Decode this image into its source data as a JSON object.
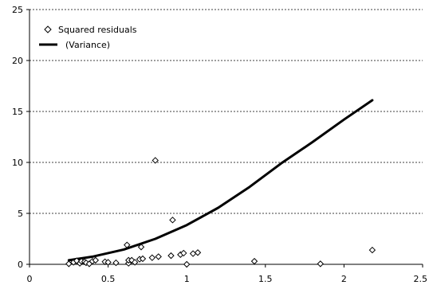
{
  "chart_data": {
    "type": "scatter",
    "title": "",
    "xlabel": "",
    "ylabel": "",
    "xlim": [
      0,
      2.5
    ],
    "ylim": [
      0,
      25
    ],
    "x_ticks": [
      0,
      0.5,
      1,
      1.5,
      2,
      2.5
    ],
    "x_tick_labels": [
      "0",
      "0.5",
      "1",
      "1.5",
      "2",
      "2.5"
    ],
    "y_ticks": [
      0,
      5,
      10,
      15,
      20,
      25
    ],
    "y_tick_labels": [
      "0",
      "5",
      "10",
      "15",
      "20",
      "25"
    ],
    "grid": "horizontal-dashed",
    "legend_position": "top-left",
    "series": [
      {
        "name": "Squared residuals",
        "kind": "points",
        "marker": "diamond",
        "points": [
          [
            0.25,
            0.05
          ],
          [
            0.28,
            0.2
          ],
          [
            0.3,
            0.35
          ],
          [
            0.32,
            0.1
          ],
          [
            0.33,
            0.3
          ],
          [
            0.35,
            0.25
          ],
          [
            0.36,
            0.15
          ],
          [
            0.38,
            0.05
          ],
          [
            0.4,
            0.3
          ],
          [
            0.42,
            0.4
          ],
          [
            0.48,
            0.25
          ],
          [
            0.5,
            0.2
          ],
          [
            0.55,
            0.15
          ],
          [
            0.62,
            1.9
          ],
          [
            0.63,
            0.1
          ],
          [
            0.63,
            0.4
          ],
          [
            0.65,
            0.4
          ],
          [
            0.67,
            0.2
          ],
          [
            0.7,
            0.5
          ],
          [
            0.71,
            1.7
          ],
          [
            0.72,
            0.55
          ],
          [
            0.78,
            0.65
          ],
          [
            0.8,
            10.2
          ],
          [
            0.82,
            0.75
          ],
          [
            0.9,
            0.85
          ],
          [
            0.91,
            4.35
          ],
          [
            0.96,
            0.95
          ],
          [
            0.98,
            1.1
          ],
          [
            1.0,
            0.0
          ],
          [
            1.04,
            1.05
          ],
          [
            1.07,
            1.15
          ],
          [
            1.43,
            0.3
          ],
          [
            1.85,
            0.05
          ],
          [
            2.18,
            1.4
          ]
        ]
      },
      {
        "name": "(Variance)",
        "kind": "line",
        "points": [
          [
            0.25,
            0.4
          ],
          [
            0.4,
            0.75
          ],
          [
            0.6,
            1.45
          ],
          [
            0.8,
            2.5
          ],
          [
            1.0,
            3.85
          ],
          [
            1.2,
            5.55
          ],
          [
            1.4,
            7.6
          ],
          [
            1.6,
            9.9
          ],
          [
            1.8,
            12.0
          ],
          [
            2.0,
            14.2
          ],
          [
            2.18,
            16.1
          ]
        ]
      }
    ]
  }
}
